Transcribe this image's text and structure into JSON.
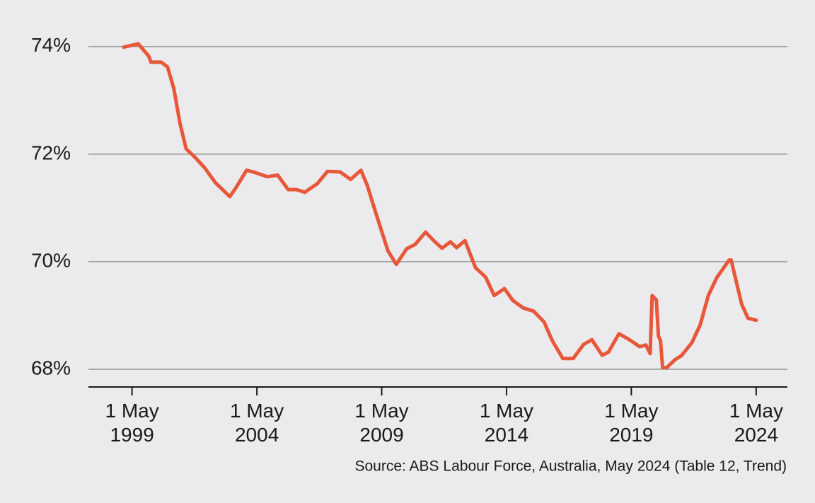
{
  "chart_data": {
    "type": "line",
    "source": "Source: ABS Labour Force, Australia, May 2024 (Table 12, Trend)",
    "x": [
      "1999-01",
      "1999-08",
      "2000-01",
      "2000-02",
      "2000-07",
      "2000-10",
      "2001-01",
      "2001-04",
      "2001-07",
      "2001-11",
      "2002-04",
      "2002-09",
      "2003-04",
      "2003-07",
      "2003-12",
      "2004-04",
      "2004-10",
      "2005-03",
      "2005-08",
      "2005-12",
      "2006-04",
      "2006-10",
      "2007-03",
      "2007-09",
      "2008-02",
      "2008-07",
      "2008-10",
      "2009-02",
      "2009-08",
      "2009-12",
      "2010-05",
      "2010-09",
      "2011-02",
      "2011-06",
      "2011-10",
      "2012-02",
      "2012-05",
      "2012-09",
      "2013-02",
      "2013-07",
      "2013-11",
      "2014-04",
      "2014-08",
      "2015-01",
      "2015-06",
      "2015-11",
      "2016-03",
      "2016-08",
      "2017-01",
      "2017-06",
      "2017-10",
      "2018-03",
      "2018-06",
      "2018-11",
      "2019-04",
      "2019-09",
      "2019-12",
      "2020-02",
      "2020-03",
      "2020-05",
      "2020-06",
      "2020-07",
      "2020-08",
      "2020-10",
      "2021-02",
      "2021-05",
      "2021-10",
      "2022-02",
      "2022-06",
      "2022-10",
      "2023-04",
      "2023-05",
      "2023-10",
      "2024-01",
      "2024-05"
    ],
    "series": [
      {
        "color": "#e8573a",
        "values": [
          73.99,
          74.05,
          73.82,
          73.71,
          73.71,
          73.62,
          73.22,
          72.57,
          72.1,
          71.95,
          71.74,
          71.47,
          71.21,
          71.38,
          71.7,
          71.66,
          71.58,
          71.61,
          71.34,
          71.34,
          71.29,
          71.45,
          71.68,
          71.67,
          71.53,
          71.7,
          71.42,
          70.92,
          70.2,
          69.95,
          70.24,
          70.32,
          70.55,
          70.39,
          70.25,
          70.37,
          70.26,
          70.39,
          69.89,
          69.71,
          69.37,
          69.5,
          69.28,
          69.14,
          69.08,
          68.88,
          68.53,
          68.2,
          68.2,
          68.46,
          68.55,
          68.26,
          68.32,
          68.66,
          68.55,
          68.42,
          68.45,
          68.29,
          69.37,
          69.29,
          68.62,
          68.53,
          68.03,
          68.03,
          68.18,
          68.25,
          68.49,
          68.82,
          69.37,
          69.7,
          70.03,
          70.03,
          69.21,
          68.95,
          68.91
        ]
      }
    ],
    "xlim": [
      "1997-08-01",
      "2025-08-01"
    ],
    "xticks": [
      {
        "value": "1999-05-01",
        "label": "1 May\n1999"
      },
      {
        "value": "2004-05-01",
        "label": "1 May\n2004"
      },
      {
        "value": "2009-05-01",
        "label": "1 May\n2009"
      },
      {
        "value": "2014-05-01",
        "label": "1 May\n2014"
      },
      {
        "value": "2019-05-01",
        "label": "1 May\n2019"
      },
      {
        "value": "2024-05-01",
        "label": "1 May\n2024"
      }
    ],
    "ylim": [
      67.67,
      74.34
    ],
    "yticks": [
      {
        "value": 68,
        "label": "68%"
      },
      {
        "value": 70,
        "label": "70%"
      },
      {
        "value": 72,
        "label": "72%"
      },
      {
        "value": 74,
        "label": "74%"
      }
    ],
    "grid": true
  }
}
